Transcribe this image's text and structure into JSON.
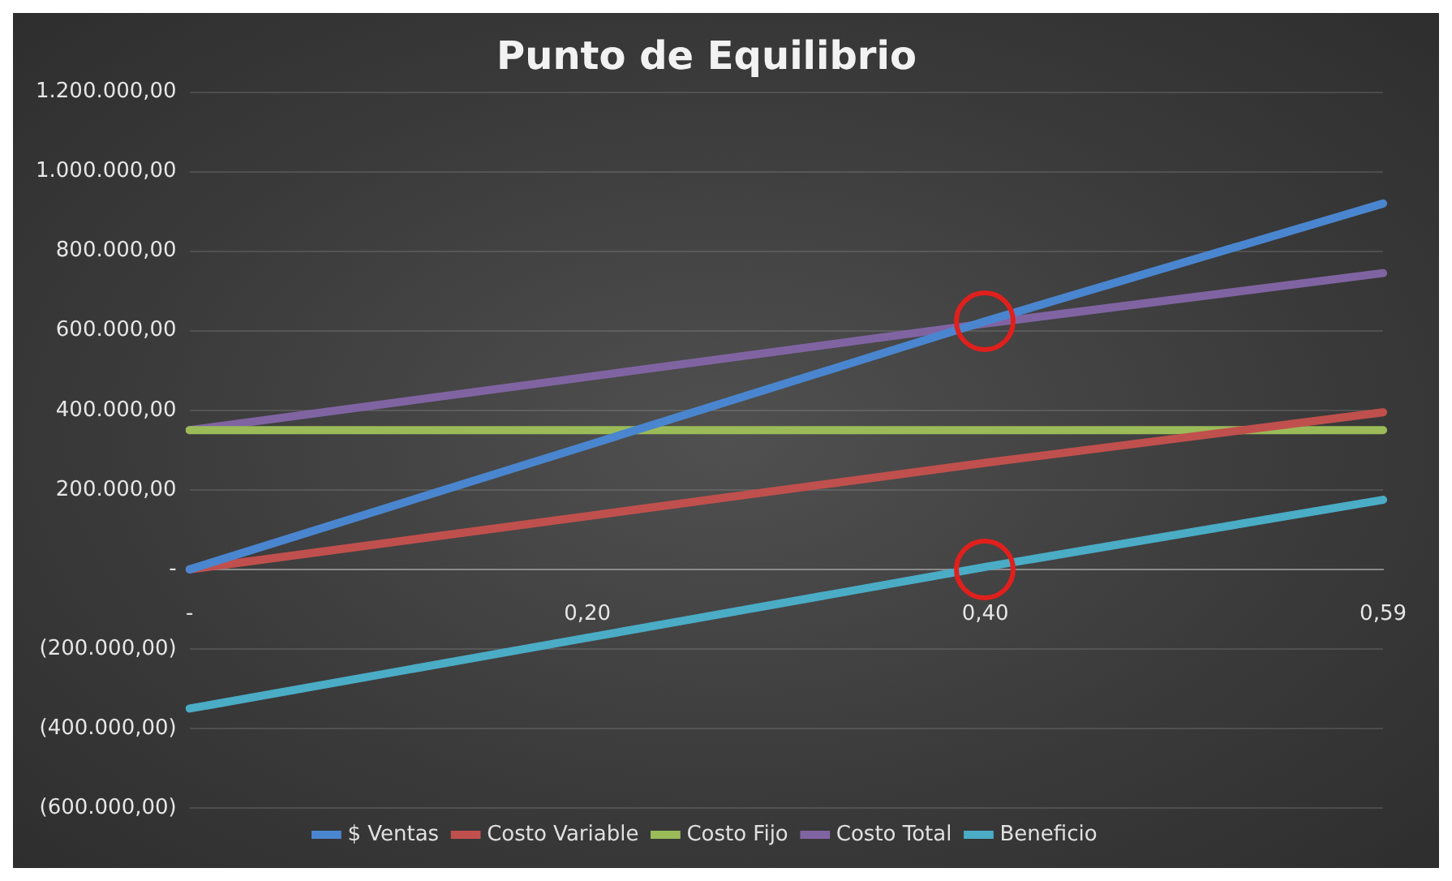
{
  "chart_data": {
    "type": "line",
    "title": "Punto de Equilibrio",
    "categories": [
      "-",
      "0,20",
      "0,40",
      "0,59"
    ],
    "series": [
      {
        "name": "$ Ventas",
        "color": "#4a86cf",
        "values": [
          0,
          312000,
          624000,
          920000
        ]
      },
      {
        "name": "Costo Variable",
        "color": "#c0504d",
        "values": [
          0,
          134000,
          268000,
          395000
        ]
      },
      {
        "name": "Costo Fijo",
        "color": "#9bbb59",
        "values": [
          350000,
          350000,
          350000,
          350000
        ]
      },
      {
        "name": "Costo Total",
        "color": "#8064a2",
        "values": [
          350000,
          484000,
          618000,
          745000
        ]
      },
      {
        "name": "Beneficio",
        "color": "#4bacc6",
        "values": [
          -350000,
          -172000,
          6000,
          175000
        ]
      }
    ],
    "ylim": [
      -600000,
      1200000
    ],
    "yticks": [
      {
        "value": -600000,
        "label": "(600.000,00)"
      },
      {
        "value": -400000,
        "label": "(400.000,00)"
      },
      {
        "value": -200000,
        "label": "(200.000,00)"
      },
      {
        "value": 0,
        "label": "-"
      },
      {
        "value": 200000,
        "label": "200.000,00"
      },
      {
        "value": 400000,
        "label": "400.000,00"
      },
      {
        "value": 600000,
        "label": "600.000,00"
      },
      {
        "value": 800000,
        "label": "800.000,00"
      },
      {
        "value": 1000000,
        "label": "1.000.000,00"
      },
      {
        "value": 1200000,
        "label": "1.200.000,00"
      }
    ],
    "grid": "y",
    "legend": "bottom",
    "marker": "none",
    "line_style": "solid"
  }
}
